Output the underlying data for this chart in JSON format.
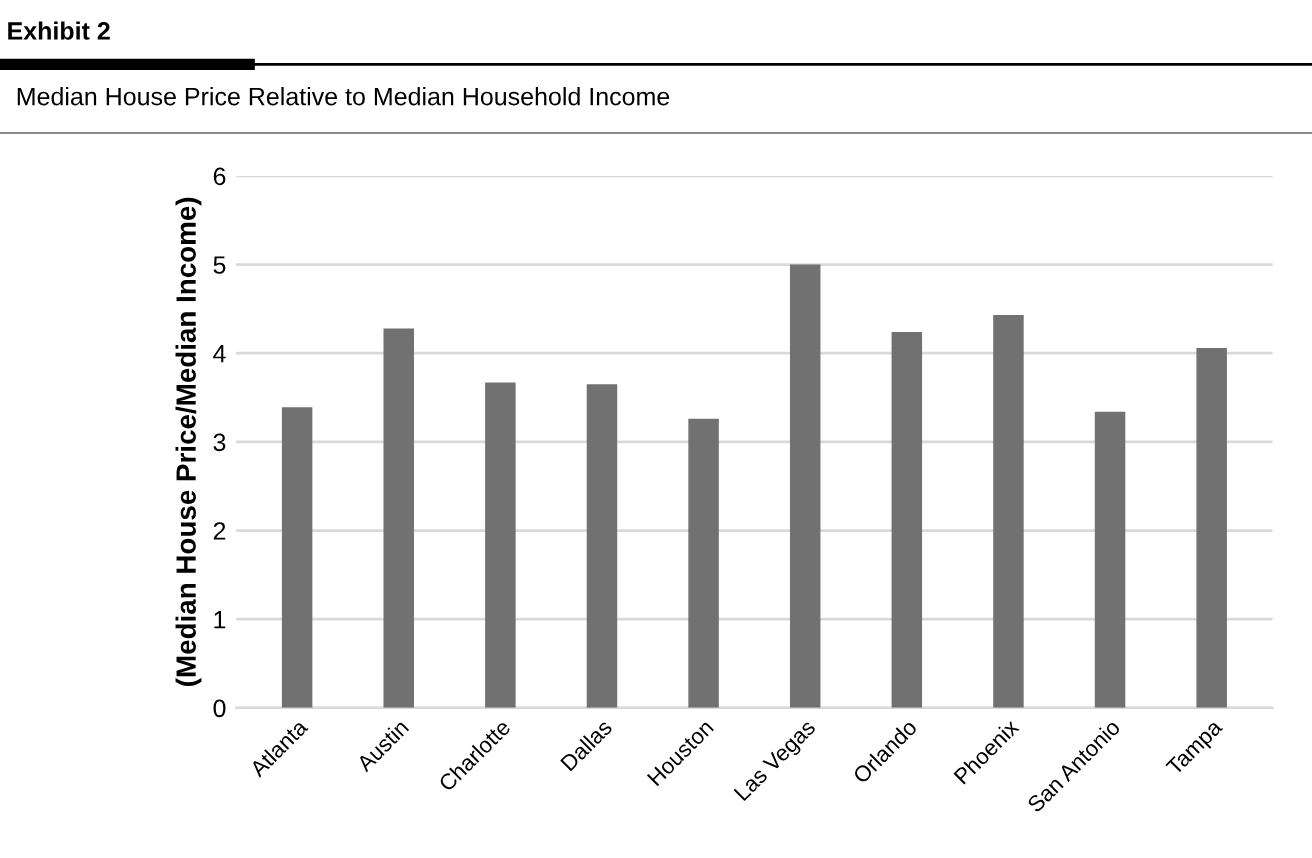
{
  "chart_data": {
    "type": "bar",
    "title": "Exhibit 2",
    "subtitle": "Median House Price Relative to Median Household Income",
    "ylabel": "(Median House Price/Median Income)",
    "categories": [
      "Atlanta",
      "Austin",
      "Charlotte",
      "Dallas",
      "Houston",
      "Las Vegas",
      "Orlando",
      "Phoenix",
      "San Antonio",
      "Tampa"
    ],
    "values": [
      3.39,
      4.28,
      3.67,
      3.65,
      3.26,
      5.0,
      4.24,
      4.43,
      3.34,
      4.06
    ],
    "color": "#717171",
    "ylim": [
      0,
      6
    ],
    "yticks": [
      0,
      1,
      2,
      3,
      4,
      5,
      6
    ],
    "grid": "y"
  }
}
